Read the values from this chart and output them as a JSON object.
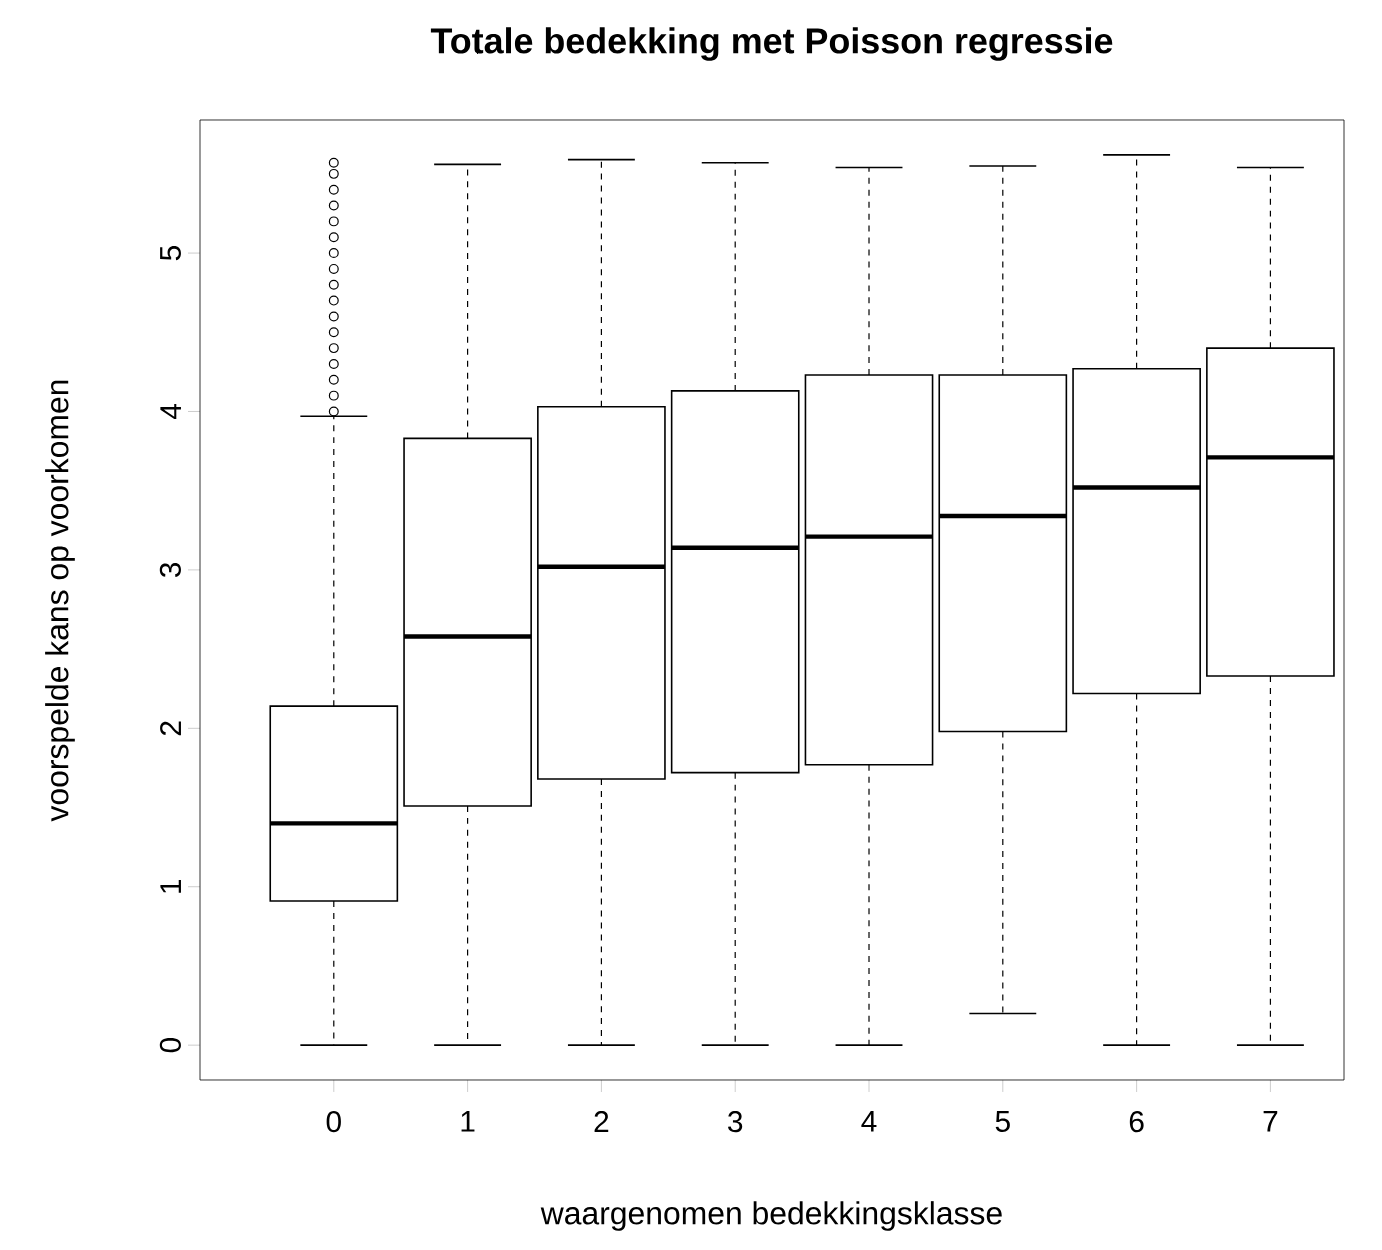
{
  "chart_data": {
    "type": "box",
    "title": "Totale bedekking met Poisson regressie",
    "xlabel": "waargenomen bedekkingsklasse",
    "ylabel": "voorspelde kans op voorkomen",
    "categories": [
      "0",
      "1",
      "2",
      "3",
      "4",
      "5",
      "6",
      "7"
    ],
    "boxes": [
      {
        "low": 0,
        "q1": 0.91,
        "median": 1.4,
        "q3": 2.14,
        "high": 3.97,
        "outliers": [
          4.0,
          4.1,
          4.2,
          4.3,
          4.4,
          4.5,
          4.6,
          4.7,
          4.8,
          4.9,
          5.0,
          5.1,
          5.2,
          5.3,
          5.4,
          5.5,
          5.57
        ]
      },
      {
        "low": 0,
        "q1": 1.51,
        "median": 2.58,
        "q3": 3.83,
        "high": 5.56
      },
      {
        "low": 0,
        "q1": 1.68,
        "median": 3.02,
        "q3": 4.03,
        "high": 5.59
      },
      {
        "low": 0,
        "q1": 1.72,
        "median": 3.14,
        "q3": 4.13,
        "high": 5.57
      },
      {
        "low": 0,
        "q1": 1.77,
        "median": 3.21,
        "q3": 4.23,
        "high": 5.54
      },
      {
        "low": 0.2,
        "q1": 1.98,
        "median": 3.34,
        "q3": 4.23,
        "high": 5.55
      },
      {
        "low": 0,
        "q1": 2.22,
        "median": 3.52,
        "q3": 4.27,
        "high": 5.62
      },
      {
        "low": 0,
        "q1": 2.33,
        "median": 3.71,
        "q3": 4.4,
        "high": 5.54
      }
    ],
    "ylim": [
      -0.22,
      5.84
    ],
    "yticks": [
      0,
      1,
      2,
      3,
      4,
      5
    ],
    "marker": "circle"
  }
}
